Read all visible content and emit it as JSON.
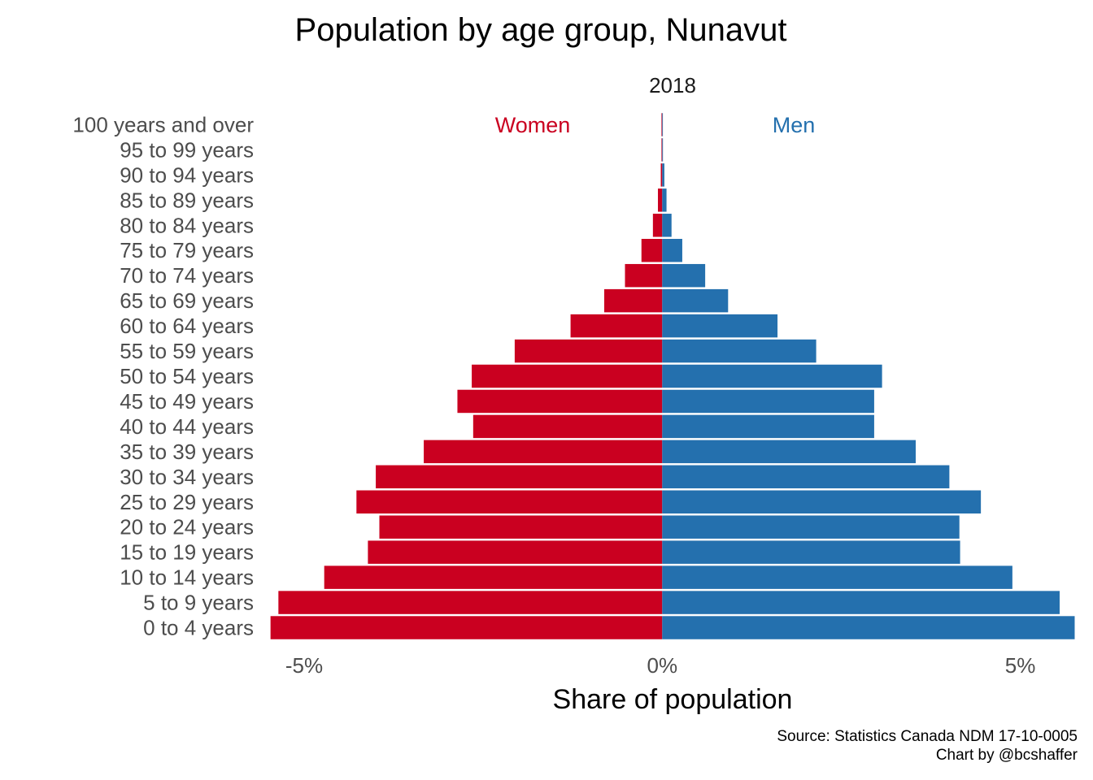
{
  "chart_data": {
    "type": "bar",
    "orientation": "horizontal",
    "title": "Population by age group, Nunavut",
    "subtitle": "2018",
    "xlabel": "Share of population",
    "ylabel": "",
    "xlim": [
      -5.5,
      5.8
    ],
    "x_ticks": [
      -5,
      0,
      5
    ],
    "x_tick_labels": [
      "-5%",
      "0%",
      "5%"
    ],
    "categories": [
      "0 to 4 years",
      "5 to 9 years",
      "10 to 14 years",
      "15 to 19 years",
      "20 to 24 years",
      "25 to 29 years",
      "30 to 34 years",
      "35 to 39 years",
      "40 to 44 years",
      "45 to 49 years",
      "50 to 54 years",
      "55 to 59 years",
      "60 to 64 years",
      "65 to 69 years",
      "70 to 74 years",
      "75 to 79 years",
      "80 to 84 years",
      "85 to 89 years",
      "90 to 94 years",
      "95 to 99 years",
      "100 years and over"
    ],
    "series": [
      {
        "name": "Women",
        "color": "#ca0020",
        "values": [
          -5.47,
          -5.36,
          -4.72,
          -4.11,
          -3.95,
          -4.27,
          -4.0,
          -3.33,
          -2.64,
          -2.86,
          -2.66,
          -2.06,
          -1.28,
          -0.81,
          -0.52,
          -0.29,
          -0.13,
          -0.06,
          -0.02,
          -0.01,
          -0.01
        ]
      },
      {
        "name": "Men",
        "color": "#2470ae",
        "values": [
          5.76,
          5.55,
          4.89,
          4.16,
          4.15,
          4.45,
          4.01,
          3.54,
          2.96,
          2.96,
          3.07,
          2.15,
          1.61,
          0.92,
          0.6,
          0.28,
          0.13,
          0.06,
          0.03,
          0.01,
          0.0
        ]
      }
    ],
    "legend": {
      "placement": "top",
      "women_label": "Women",
      "men_label": "Men"
    },
    "grid": false
  },
  "caption": {
    "source": "Source: Statistics Canada NDM 17-10-0005",
    "credit": "Chart by @bcshaffer"
  }
}
